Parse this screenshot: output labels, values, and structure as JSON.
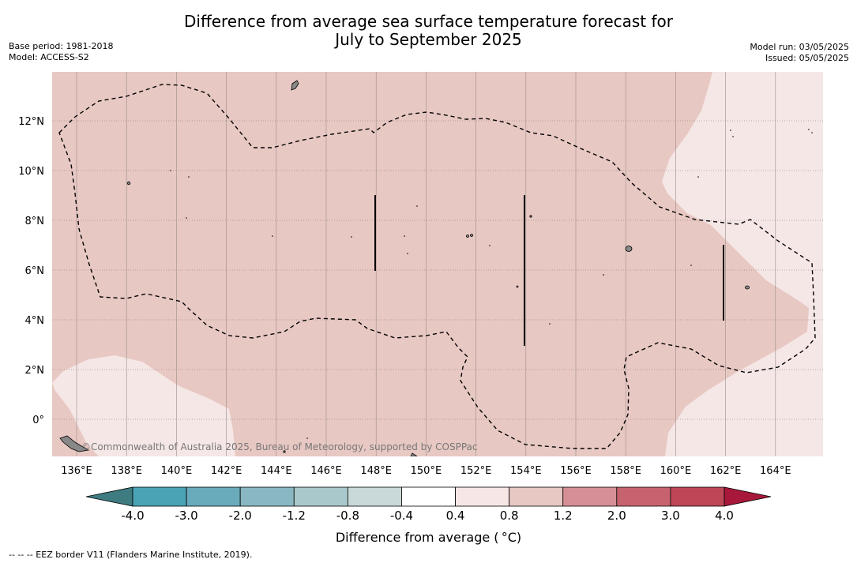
{
  "title_line1": "Difference from average sea surface temperature forecast for",
  "title_line2": "July to September 2025",
  "meta_left": {
    "base_period": "Base period: 1981-2018",
    "model": "Model: ACCESS-S2"
  },
  "meta_right": {
    "model_run": "Model run: 03/05/2025",
    "issued": "Issued: 05/05/2025"
  },
  "watermark": "©Commonwealth of Australia 2025, Bureau of Meteorology, supported by COSPPac",
  "footnote": "--  --  -- EEZ border V11 (Flanders Marine Institute, 2019).",
  "map": {
    "lon_ticks": [
      "136°E",
      "138°E",
      "140°E",
      "142°E",
      "144°E",
      "146°E",
      "148°E",
      "150°E",
      "152°E",
      "154°E",
      "156°E",
      "158°E",
      "160°E",
      "162°E",
      "164°E"
    ],
    "lat_ticks": [
      "12°N",
      "10°N",
      "8°N",
      "6°N",
      "4°N",
      "2°N",
      "0°"
    ],
    "lon_values": [
      136,
      138,
      140,
      142,
      144,
      146,
      148,
      150,
      152,
      154,
      156,
      158,
      160,
      162,
      164
    ],
    "lat_values": [
      12,
      10,
      8,
      6,
      4,
      2,
      0
    ],
    "extent": {
      "lon_min": 135,
      "lon_max": 166,
      "lat_min": -1.5,
      "lat_max": 14
    },
    "colors": {
      "band_0_8_1_2": "#e8c8c3",
      "band_0_4_0_8": "#f5e7e6",
      "land": "#888888"
    }
  },
  "colorbar": {
    "title": "Difference from average ( °C)",
    "boundaries": [
      "-4.0",
      "-3.0",
      "-2.0",
      "-1.2",
      "-0.8",
      "-0.4",
      "0.4",
      "0.8",
      "1.2",
      "2.0",
      "3.0",
      "4.0"
    ],
    "colors": [
      "#4aa3b4",
      "#6aabbb",
      "#89b8c2",
      "#a9c8cc",
      "#c9d8d8",
      "#ffffff",
      "#f6e6e5",
      "#e8c8c3",
      "#d68f96",
      "#c7636f",
      "#bd4756"
    ],
    "extend_low": "#3e7c81",
    "extend_high": "#a8183a"
  }
}
